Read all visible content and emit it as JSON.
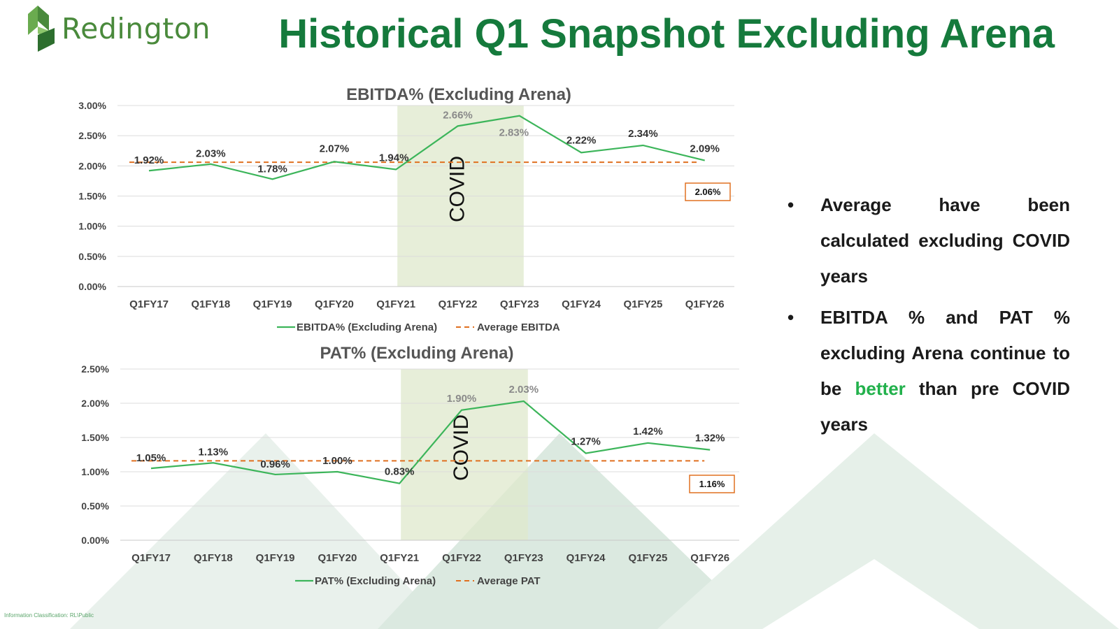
{
  "header": {
    "logo_text": "Redington",
    "title": "Historical Q1 Snapshot Excluding Arena"
  },
  "bullets": [
    {
      "text": "Average have been calculated excluding COVID years"
    },
    {
      "before": "EBITDA % and PAT % excluding Arena continue to be ",
      "highlight": "better",
      "after": " than pre COVID years"
    }
  ],
  "footer": {
    "classification": "Information Classification: RL\\Public"
  },
  "colors": {
    "brand_green": "#157a3c",
    "line_green": "#3cb55a",
    "avg_orange": "#e07020",
    "covid_shade": "#dfe8cc",
    "highlight_green": "#22b14c"
  },
  "chart_data": [
    {
      "type": "line",
      "title": "EBITDA% (Excluding Arena)",
      "categories": [
        "Q1FY17",
        "Q1FY18",
        "Q1FY19",
        "Q1FY20",
        "Q1FY21",
        "Q1FY22",
        "Q1FY23",
        "Q1FY24",
        "Q1FY25",
        "Q1FY26"
      ],
      "series": [
        {
          "name": "EBITDA% (Excluding Arena)",
          "values": [
            1.92,
            2.03,
            1.78,
            2.07,
            1.94,
            2.66,
            2.83,
            2.22,
            2.34,
            2.09
          ],
          "labels": [
            "1.92%",
            "2.03%",
            "1.78%",
            "2.07%",
            "1.94%",
            "2.66%",
            "2.83%",
            "2.22%",
            "2.34%",
            "2.09%"
          ]
        },
        {
          "name": "Average EBITDA",
          "values": [
            2.06,
            2.06,
            2.06,
            2.06,
            2.06,
            2.06,
            2.06,
            2.06,
            2.06,
            2.06
          ],
          "style": "dashed"
        }
      ],
      "average_label": "2.06%",
      "ylim": [
        0,
        3
      ],
      "yticks": [
        "0.00%",
        "0.50%",
        "1.00%",
        "1.50%",
        "2.00%",
        "2.50%",
        "3.00%"
      ],
      "covid_band": {
        "from": "Q1FY21",
        "to": "Q1FY23",
        "label": "COVID"
      },
      "grid": true,
      "legend": "bottom"
    },
    {
      "type": "line",
      "title": "PAT%  (Excluding Arena)",
      "categories": [
        "Q1FY17",
        "Q1FY18",
        "Q1FY19",
        "Q1FY20",
        "Q1FY21",
        "Q1FY22",
        "Q1FY23",
        "Q1FY24",
        "Q1FY25",
        "Q1FY26"
      ],
      "series": [
        {
          "name": "PAT% (Excluding Arena)",
          "values": [
            1.05,
            1.13,
            0.96,
            1.0,
            0.83,
            1.9,
            2.03,
            1.27,
            1.42,
            1.32
          ],
          "labels": [
            "1.05%",
            "1.13%",
            "0.96%",
            "1.00%",
            "0.83%",
            "1.90%",
            "2.03%",
            "1.27%",
            "1.42%",
            "1.32%"
          ]
        },
        {
          "name": "Average PAT",
          "values": [
            1.16,
            1.16,
            1.16,
            1.16,
            1.16,
            1.16,
            1.16,
            1.16,
            1.16,
            1.16
          ],
          "style": "dashed"
        }
      ],
      "average_label": "1.16%",
      "ylim": [
        0,
        2.5
      ],
      "yticks": [
        "0.00%",
        "0.50%",
        "1.00%",
        "1.50%",
        "2.00%",
        "2.50%"
      ],
      "covid_band": {
        "from": "Q1FY21",
        "to": "Q1FY23",
        "label": "COVID"
      },
      "grid": true,
      "legend": "bottom"
    }
  ]
}
